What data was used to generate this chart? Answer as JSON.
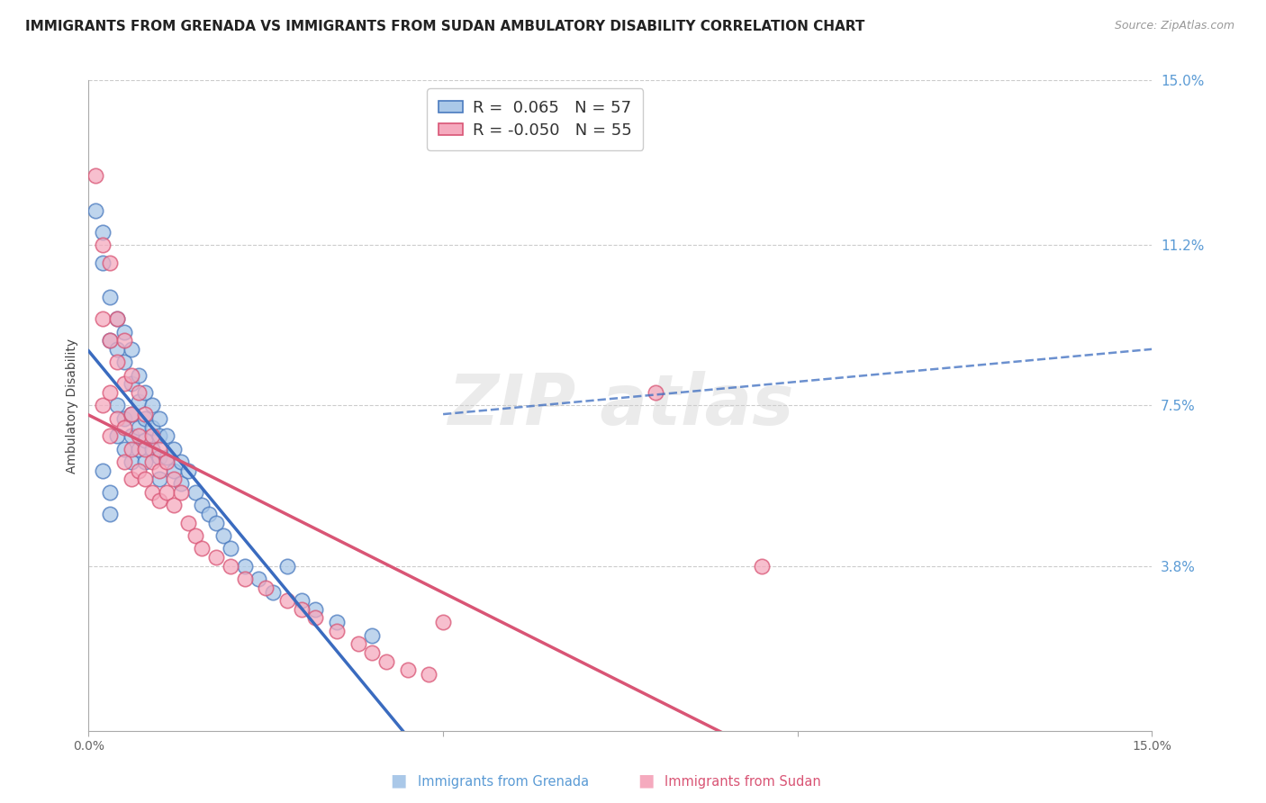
{
  "title": "IMMIGRANTS FROM GRENADA VS IMMIGRANTS FROM SUDAN AMBULATORY DISABILITY CORRELATION CHART",
  "source": "Source: ZipAtlas.com",
  "ylabel": "Ambulatory Disability",
  "xlim": [
    0.0,
    0.15
  ],
  "ylim": [
    0.0,
    0.15
  ],
  "y_tick_labels_right": [
    "15.0%",
    "11.2%",
    "7.5%",
    "3.8%"
  ],
  "y_tick_positions_right": [
    0.15,
    0.112,
    0.075,
    0.038
  ],
  "grenada_R": 0.065,
  "grenada_N": 57,
  "sudan_R": -0.05,
  "sudan_N": 55,
  "grenada_color": "#aac8e8",
  "grenada_edge_color": "#4a7abf",
  "grenada_line_color": "#3a6bbf",
  "sudan_color": "#f5aabe",
  "sudan_edge_color": "#d95575",
  "sudan_line_color": "#d95575",
  "background_color": "#ffffff",
  "grid_color": "#cccccc",
  "grenada_x": [
    0.001,
    0.002,
    0.002,
    0.002,
    0.003,
    0.003,
    0.003,
    0.003,
    0.004,
    0.004,
    0.004,
    0.004,
    0.005,
    0.005,
    0.005,
    0.005,
    0.006,
    0.006,
    0.006,
    0.006,
    0.006,
    0.007,
    0.007,
    0.007,
    0.007,
    0.008,
    0.008,
    0.008,
    0.008,
    0.009,
    0.009,
    0.009,
    0.01,
    0.01,
    0.01,
    0.01,
    0.011,
    0.011,
    0.012,
    0.012,
    0.013,
    0.013,
    0.014,
    0.015,
    0.016,
    0.017,
    0.018,
    0.019,
    0.02,
    0.022,
    0.024,
    0.026,
    0.028,
    0.03,
    0.032,
    0.035,
    0.04
  ],
  "grenada_y": [
    0.12,
    0.115,
    0.108,
    0.06,
    0.1,
    0.09,
    0.055,
    0.05,
    0.095,
    0.088,
    0.075,
    0.068,
    0.092,
    0.085,
    0.072,
    0.065,
    0.088,
    0.08,
    0.073,
    0.068,
    0.062,
    0.082,
    0.076,
    0.07,
    0.065,
    0.078,
    0.072,
    0.067,
    0.062,
    0.075,
    0.07,
    0.065,
    0.072,
    0.068,
    0.063,
    0.058,
    0.068,
    0.063,
    0.065,
    0.06,
    0.062,
    0.057,
    0.06,
    0.055,
    0.052,
    0.05,
    0.048,
    0.045,
    0.042,
    0.038,
    0.035,
    0.032,
    0.038,
    0.03,
    0.028,
    0.025,
    0.022
  ],
  "sudan_x": [
    0.001,
    0.002,
    0.002,
    0.002,
    0.003,
    0.003,
    0.003,
    0.003,
    0.004,
    0.004,
    0.004,
    0.005,
    0.005,
    0.005,
    0.005,
    0.006,
    0.006,
    0.006,
    0.006,
    0.007,
    0.007,
    0.007,
    0.008,
    0.008,
    0.008,
    0.009,
    0.009,
    0.009,
    0.01,
    0.01,
    0.01,
    0.011,
    0.011,
    0.012,
    0.012,
    0.013,
    0.014,
    0.015,
    0.016,
    0.018,
    0.02,
    0.022,
    0.025,
    0.028,
    0.03,
    0.032,
    0.035,
    0.038,
    0.04,
    0.042,
    0.045,
    0.048,
    0.05,
    0.08,
    0.095
  ],
  "sudan_y": [
    0.128,
    0.112,
    0.095,
    0.075,
    0.108,
    0.09,
    0.078,
    0.068,
    0.095,
    0.085,
    0.072,
    0.09,
    0.08,
    0.07,
    0.062,
    0.082,
    0.073,
    0.065,
    0.058,
    0.078,
    0.068,
    0.06,
    0.073,
    0.065,
    0.058,
    0.068,
    0.062,
    0.055,
    0.065,
    0.06,
    0.053,
    0.062,
    0.055,
    0.058,
    0.052,
    0.055,
    0.048,
    0.045,
    0.042,
    0.04,
    0.038,
    0.035,
    0.033,
    0.03,
    0.028,
    0.026,
    0.023,
    0.02,
    0.018,
    0.016,
    0.014,
    0.013,
    0.025,
    0.078,
    0.038
  ]
}
